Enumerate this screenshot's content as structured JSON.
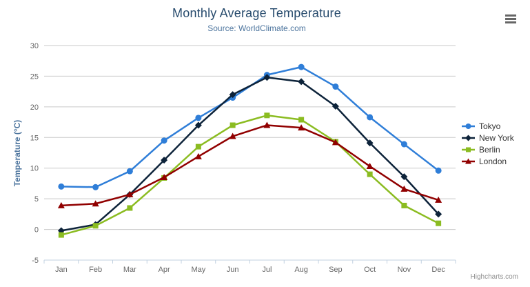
{
  "credits": "Highcharts.com",
  "icons": {
    "context_menu": "hamburger-menu-icon"
  },
  "colors": {
    "background": "#ffffff",
    "title": "#274b6d",
    "subtitle": "#4d759e",
    "axis_title": "#4d759e",
    "axis_label": "#666666",
    "grid": "#c9c9c9",
    "axis_line": "#c0d0e0",
    "legend_text": "#333333",
    "credits": "#909090",
    "menu_icon": "#666666"
  },
  "chart_data": {
    "type": "line",
    "title": "Monthly Average Temperature",
    "subtitle": "Source: WorldClimate.com",
    "ylabel": "Temperature (°C)",
    "xlabel": "",
    "categories": [
      "Jan",
      "Feb",
      "Mar",
      "Apr",
      "May",
      "Jun",
      "Jul",
      "Aug",
      "Sep",
      "Oct",
      "Nov",
      "Dec"
    ],
    "yticks": [
      -5,
      0,
      5,
      10,
      15,
      20,
      25,
      30
    ],
    "ylim": [
      -5,
      30
    ],
    "grid": true,
    "legend_position": "right",
    "series": [
      {
        "name": "Tokyo",
        "color": "#2f7ed8",
        "marker": "circle",
        "values": [
          7.0,
          6.9,
          9.5,
          14.5,
          18.2,
          21.5,
          25.2,
          26.5,
          23.3,
          18.3,
          13.9,
          9.6
        ]
      },
      {
        "name": "New York",
        "color": "#0d233a",
        "marker": "diamond",
        "values": [
          -0.2,
          0.8,
          5.7,
          11.3,
          17.0,
          22.0,
          24.8,
          24.1,
          20.1,
          14.1,
          8.6,
          2.5
        ]
      },
      {
        "name": "Berlin",
        "color": "#8bbc21",
        "marker": "square",
        "values": [
          -0.9,
          0.6,
          3.5,
          8.4,
          13.5,
          17.0,
          18.6,
          17.9,
          14.3,
          9.0,
          3.9,
          1.0
        ]
      },
      {
        "name": "London",
        "color": "#910000",
        "marker": "triangle",
        "values": [
          3.9,
          4.2,
          5.7,
          8.5,
          11.9,
          15.2,
          17.0,
          16.6,
          14.2,
          10.3,
          6.6,
          4.8
        ]
      }
    ]
  }
}
